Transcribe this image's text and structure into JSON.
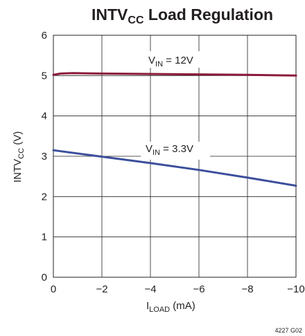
{
  "chart_data": {
    "type": "line",
    "title": {
      "main": "INTV",
      "sub": "CC",
      "rest": " Load Regulation"
    },
    "xlabel": {
      "main": "I",
      "sub": "LOAD",
      "rest": " (mA)"
    },
    "ylabel": {
      "main": "INTV",
      "sub": "CC",
      "rest": " (V)"
    },
    "xlim": [
      0,
      -10
    ],
    "ylim": [
      0,
      6
    ],
    "xticks": [
      0,
      -2,
      -4,
      -6,
      -8,
      -10
    ],
    "xtick_labels": [
      "0",
      "−2",
      "−4",
      "−6",
      "−8",
      "−10"
    ],
    "yticks": [
      0,
      1,
      2,
      3,
      4,
      5,
      6
    ],
    "ytick_labels": [
      "0",
      "1",
      "2",
      "3",
      "4",
      "5",
      "6"
    ],
    "grid": true,
    "series": [
      {
        "name": {
          "main": "V",
          "sub": "IN",
          "rest": " = 12V"
        },
        "color": "#8b1a3b",
        "x": [
          0,
          -0.3,
          -0.8,
          -2,
          -4,
          -6,
          -8,
          -10
        ],
        "y": [
          5.02,
          5.05,
          5.06,
          5.05,
          5.04,
          5.03,
          5.02,
          5.0
        ]
      },
      {
        "name": {
          "main": "V",
          "sub": "IN",
          "rest": " = 3.3V"
        },
        "color": "#3b4f9c",
        "x": [
          0,
          -2,
          -4,
          -6,
          -8,
          -10
        ],
        "y": [
          3.15,
          2.99,
          2.83,
          2.66,
          2.47,
          2.27
        ]
      }
    ],
    "figure_id": "4227 G02"
  }
}
